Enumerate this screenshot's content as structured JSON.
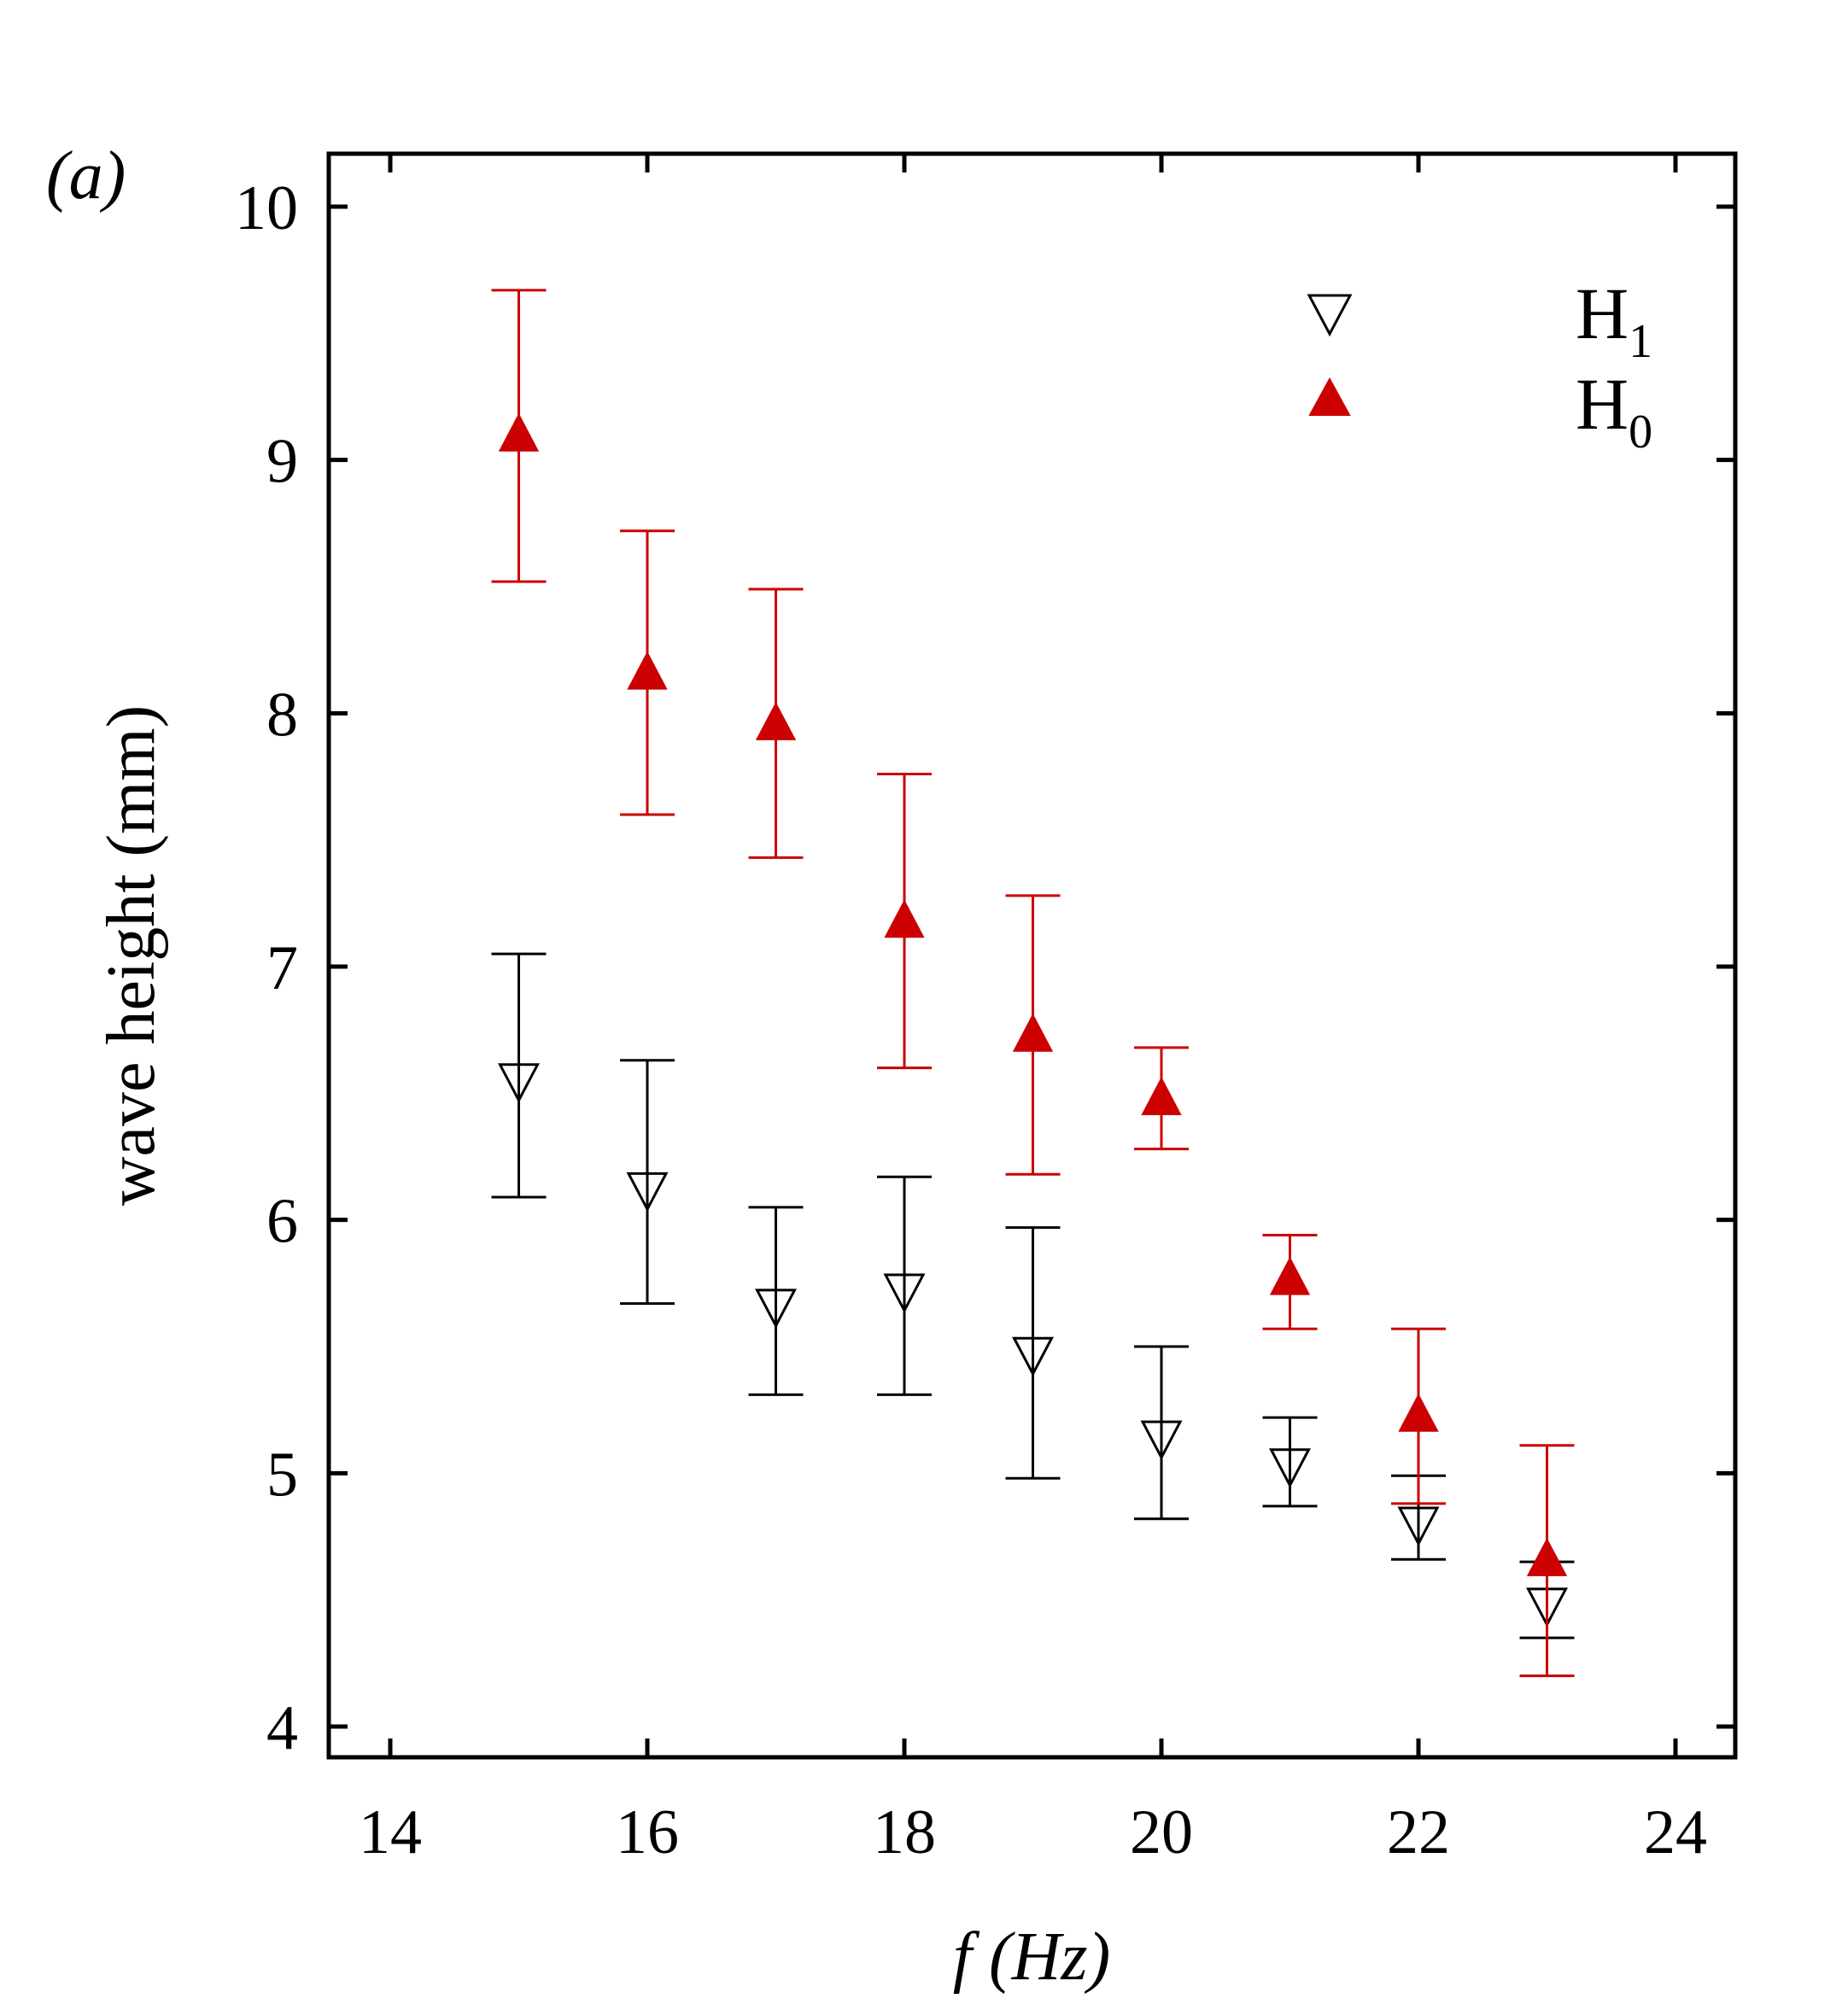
{
  "panel_label": "(a)",
  "chart_data": {
    "type": "scatter",
    "title": "",
    "xlabel_italic": "f",
    "xlabel_rest": " (Hz)",
    "xlabel": "f (Hz)",
    "ylabel": "wave height (mm)",
    "xlim": [
      13.5,
      24.5
    ],
    "ylim": [
      3.8,
      10.2
    ],
    "xticks": [
      14,
      16,
      18,
      20,
      22,
      24
    ],
    "yticks": [
      4,
      5,
      6,
      7,
      8,
      9,
      10
    ],
    "grid": false,
    "legend_position": "top-right",
    "series": [
      {
        "name": "H1",
        "label_main": "H",
        "label_sub": "1",
        "marker": "triangle-down-open",
        "color": "#000000",
        "x": [
          15,
          16,
          17,
          18,
          19,
          20,
          21,
          22,
          23
        ],
        "y": [
          6.55,
          6.12,
          5.66,
          5.72,
          5.47,
          5.14,
          5.03,
          4.8,
          4.48
        ],
        "err_low": [
          6.09,
          5.67,
          5.31,
          5.31,
          4.98,
          4.82,
          4.87,
          4.66,
          4.35
        ],
        "err_high": [
          7.05,
          6.63,
          6.05,
          6.17,
          5.97,
          5.5,
          5.22,
          4.99,
          4.65
        ]
      },
      {
        "name": "H0",
        "label_main": "H",
        "label_sub": "0",
        "marker": "triangle-up-filled",
        "color": "#cc0000",
        "x": [
          15,
          16,
          17,
          18,
          19,
          20,
          21,
          22,
          23
        ],
        "y": [
          9.1,
          8.16,
          7.96,
          7.18,
          6.73,
          6.48,
          5.77,
          5.23,
          4.66
        ],
        "err_low": [
          8.52,
          7.6,
          7.43,
          6.6,
          6.18,
          6.28,
          5.57,
          4.88,
          4.2
        ],
        "err_high": [
          9.67,
          8.72,
          8.49,
          7.76,
          7.28,
          6.68,
          5.94,
          5.57,
          5.11
        ]
      }
    ]
  }
}
